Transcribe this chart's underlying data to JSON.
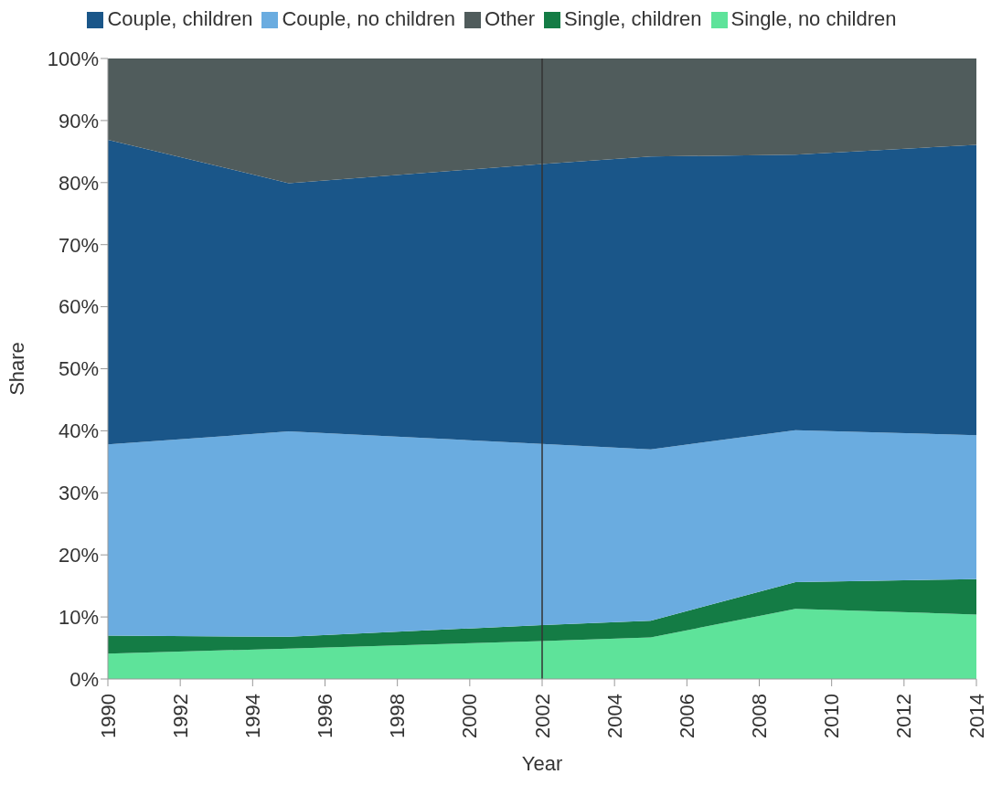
{
  "chart_data": {
    "type": "area",
    "stacked": true,
    "xlabel": "Year",
    "ylabel": "Share",
    "x": [
      1990,
      1995,
      2002,
      2005,
      2009,
      2014
    ],
    "series": [
      {
        "name": "Single, no children",
        "color": "#5ee39a",
        "values": [
          4.1,
          4.9,
          6.1,
          6.7,
          11.3,
          10.4
        ]
      },
      {
        "name": "Single, children",
        "color": "#147c45",
        "values": [
          2.9,
          1.9,
          2.6,
          2.7,
          4.3,
          5.7
        ]
      },
      {
        "name": "Couple, no children",
        "color": "#6aace0",
        "values": [
          30.8,
          33.1,
          29.2,
          27.6,
          24.5,
          23.2
        ]
      },
      {
        "name": "Couple, children",
        "color": "#1a5689",
        "values": [
          49.1,
          40.0,
          45.1,
          47.2,
          44.4,
          46.8
        ]
      },
      {
        "name": "Other",
        "color": "#505c5c",
        "values": [
          13.1,
          20.1,
          17.0,
          15.8,
          15.5,
          13.9
        ]
      }
    ],
    "xlim": [
      1990,
      2014
    ],
    "xticks": [
      1990,
      1992,
      1994,
      1996,
      1998,
      2000,
      2002,
      2004,
      2006,
      2008,
      2010,
      2012,
      2014
    ],
    "ylim": [
      0,
      100
    ],
    "yticks": [
      {
        "value": 0,
        "label": "0%"
      },
      {
        "value": 10,
        "label": "10%"
      },
      {
        "value": 20,
        "label": "20%"
      },
      {
        "value": 30,
        "label": "30%"
      },
      {
        "value": 40,
        "label": "40%"
      },
      {
        "value": 50,
        "label": "50%"
      },
      {
        "value": 60,
        "label": "60%"
      },
      {
        "value": 70,
        "label": "70%"
      },
      {
        "value": 80,
        "label": "80%"
      },
      {
        "value": 90,
        "label": "90%"
      },
      {
        "value": 100,
        "label": "100%"
      }
    ],
    "ref_lines": [
      {
        "axis": "x",
        "value": 2002,
        "color": "#333333"
      }
    ],
    "grid": false,
    "legend": "top"
  }
}
